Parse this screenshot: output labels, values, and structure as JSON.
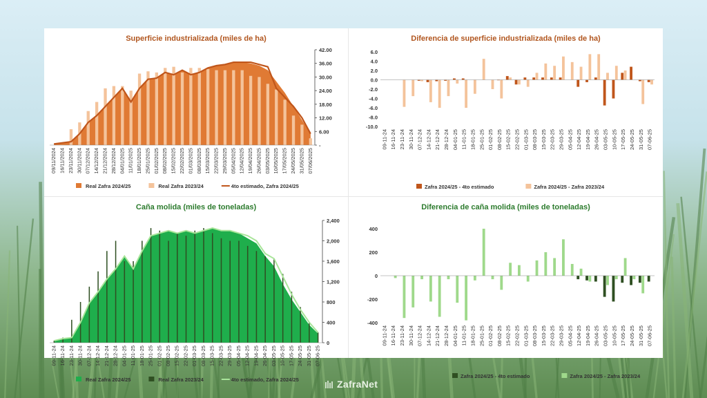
{
  "brand": {
    "name": "ZafraNet"
  },
  "colors": {
    "orange": "#e07a34",
    "orange_light": "#f4c39b",
    "orange_dark": "#c0561b",
    "orange_title": "#b1561f",
    "green": "#1fae4c",
    "green_dark": "#2f4f22",
    "green_light": "#9fd98b",
    "green_line": "#a9e59a",
    "green_title": "#2c7b2d"
  },
  "chart_data": [
    {
      "id": "superficie",
      "type": "bar",
      "title": "Superficie industrializada (miles de ha)",
      "categories": [
        "09/11/2024",
        "16/11/2024",
        "23/11/2024",
        "30/11/2024",
        "07/12/2024",
        "14/12/2024",
        "21/12/2024",
        "28/12/2024",
        "04/01/2025",
        "11/01/2025",
        "18/01/2025",
        "25/01/2025",
        "01/02/2025",
        "08/02/2025",
        "15/02/2025",
        "22/02/2025",
        "01/03/2025",
        "08/03/2025",
        "15/03/2025",
        "22/03/2025",
        "29/03/2025",
        "05/04/2025",
        "12/04/2025",
        "19/04/2025",
        "26/04/2025",
        "03/05/2025",
        "10/05/2025",
        "17/05/2025",
        "24/05/2025",
        "31/05/2025",
        "07/06/2025"
      ],
      "ytick_labels": [
        "42.00",
        "36.00",
        "30.00",
        "24.00",
        "18.00",
        "12.00",
        "6.00",
        "-"
      ],
      "ylim": [
        0,
        42
      ],
      "series": [
        {
          "name": "Real Zafra 2024/25",
          "kind": "area",
          "values": [
            0.5,
            1,
            1.5,
            5,
            10,
            13,
            17,
            21,
            25,
            19,
            25,
            29,
            29.5,
            32,
            31,
            33,
            31,
            32,
            34,
            35,
            35.5,
            36.5,
            36.5,
            36,
            35,
            33,
            28,
            23,
            17,
            11,
            5
          ]
        },
        {
          "name": "Real Zafra 2023/24",
          "kind": "bar",
          "values": [
            0,
            0,
            7,
            10,
            15,
            19,
            25,
            26,
            26,
            24,
            31.5,
            32.5,
            32,
            34,
            34.5,
            32,
            34,
            34,
            33.5,
            33,
            33,
            33,
            33,
            30.5,
            30,
            27,
            24.5,
            20,
            13,
            9,
            3
          ]
        },
        {
          "name": "4to estimado, Zafra 2024/25",
          "kind": "line",
          "values": [
            0.5,
            1,
            1.5,
            5,
            10,
            13,
            17,
            21,
            25,
            19,
            25,
            29,
            29.5,
            32,
            31,
            33,
            31,
            32,
            34,
            35,
            35.5,
            36.5,
            36.5,
            36.5,
            35.5,
            34.5,
            25,
            21,
            17,
            12,
            5
          ]
        }
      ]
    },
    {
      "id": "dif_superficie",
      "type": "bar",
      "title": "Diferencia de superficie industrializada (miles de ha)",
      "categories": [
        "09-11-24",
        "16-11-24",
        "23-11-24",
        "30-11-24",
        "07-12-24",
        "14-12-24",
        "21-12-24",
        "28-12-24",
        "04-01-25",
        "11-01-25",
        "18-01-25",
        "25-01-25",
        "01-02-25",
        "08-02-25",
        "15-02-25",
        "22-02-25",
        "01-03-25",
        "08-03-25",
        "15-03-25",
        "22-03-25",
        "29-03-25",
        "05-04-25",
        "12-04-25",
        "19-04-25",
        "26-04-25",
        "03-05-25",
        "10-05-25",
        "17-05-25",
        "24-05-25",
        "31-05-25",
        "07-06-25"
      ],
      "ytick_labels": [
        "6.0",
        "4.0",
        "2.0",
        "0.0",
        "-2.0",
        "-4.0",
        "-6.0",
        "-8.0",
        "-10.0"
      ],
      "ylim": [
        -10,
        6
      ],
      "series": [
        {
          "name": "Zafra 2024/25 - 4to estimado",
          "values": [
            0,
            0,
            0,
            0,
            -0.2,
            -0.5,
            -0.3,
            -0.2,
            0.3,
            0.3,
            0,
            0,
            0,
            -0.1,
            0.8,
            -1,
            0.5,
            0.5,
            0.5,
            0.5,
            0.5,
            0,
            -1.5,
            -0.5,
            0.5,
            -5.5,
            -4,
            1.5,
            2.8,
            -0.3,
            -0.5
          ]
        },
        {
          "name": "Zafra 2024/25 - Zafra 2023/24",
          "values": [
            0,
            0,
            -5.8,
            -3.5,
            -0.3,
            -4.8,
            -6,
            -3.5,
            -0.8,
            -6,
            -3,
            4.5,
            -2,
            -4,
            0.5,
            -1,
            -1.5,
            1.5,
            3.5,
            3,
            5,
            3.8,
            2.8,
            5.5,
            5.5,
            1.5,
            3,
            2,
            0,
            -5.2,
            -1
          ]
        }
      ]
    },
    {
      "id": "cana",
      "type": "bar",
      "title": "Caña molida (miles de toneladas)",
      "categories": [
        "09-11-24",
        "16-11-24",
        "23-11-24",
        "30-11-24",
        "07-12-24",
        "14-12-24",
        "21-12-24",
        "28-12-24",
        "04-01-25",
        "11-01-25",
        "18-01-25",
        "25-01-25",
        "01-02-25",
        "08-02-25",
        "15-02-25",
        "22-02-25",
        "01-03-25",
        "08-03-25",
        "15-03-25",
        "22-03-25",
        "29-03-25",
        "05-04-25",
        "12-04-25",
        "19-04-25",
        "26-04-25",
        "03-05-25",
        "10-05-25",
        "17-05-25",
        "24-05-25",
        "31-05-25",
        "07-06-25"
      ],
      "ytick_labels": [
        "2,400",
        "2,000",
        "1,600",
        "1,200",
        "800",
        "400",
        "0"
      ],
      "ylim": [
        0,
        2400
      ],
      "series": [
        {
          "name": "Real Zafra 2024/25",
          "kind": "area",
          "values": [
            40,
            80,
            100,
            400,
            780,
            1000,
            1250,
            1450,
            1700,
            1450,
            1800,
            2100,
            2150,
            2200,
            2150,
            2200,
            2150,
            2200,
            2250,
            2200,
            2200,
            2150,
            2050,
            1950,
            1700,
            1500,
            1150,
            850,
            600,
            350,
            180
          ]
        },
        {
          "name": "Real Zafra 2023/24",
          "kind": "bar",
          "values": [
            40,
            100,
            450,
            800,
            1100,
            1400,
            1800,
            2000,
            1600,
            1600,
            2000,
            2250,
            2200,
            2000,
            2150,
            2100,
            2200,
            2250,
            2150,
            2050,
            2000,
            2000,
            1900,
            1800,
            1700,
            1650,
            1350,
            1000,
            700,
            400,
            200
          ]
        },
        {
          "name": "4to estimado, Zafra 2024/25",
          "kind": "line",
          "values": [
            40,
            80,
            100,
            400,
            780,
            1000,
            1250,
            1450,
            1700,
            1450,
            1800,
            2100,
            2150,
            2200,
            2150,
            2200,
            2150,
            2200,
            2250,
            2200,
            2200,
            2150,
            2100,
            2000,
            1750,
            1650,
            1300,
            950,
            650,
            400,
            200
          ]
        }
      ]
    },
    {
      "id": "dif_cana",
      "type": "bar",
      "title": "Diferencia de caña molida (miles de toneladas)",
      "categories": [
        "09-11-24",
        "16-11-24",
        "23-11-24",
        "30-11-24",
        "07-12-24",
        "14-12-24",
        "21-12-24",
        "28-12-24",
        "04-01-25",
        "11-01-25",
        "18-01-25",
        "25-01-25",
        "01-02-25",
        "08-02-25",
        "15-02-25",
        "22-02-25",
        "01-03-25",
        "08-03-25",
        "15-03-25",
        "22-03-25",
        "29-03-25",
        "05-04-25",
        "12-04-25",
        "19-04-25",
        "26-04-25",
        "03-05-25",
        "10-05-25",
        "17-05-25",
        "24-05-25",
        "31-05-25",
        "07-06-25"
      ],
      "ytick_labels": [
        "400",
        "200",
        "0",
        "-200",
        "-400"
      ],
      "ylim": [
        -400,
        400
      ],
      "series": [
        {
          "name": "Zafra 2024/25 - 4to estimado",
          "values": [
            0,
            0,
            0,
            0,
            0,
            0,
            0,
            0,
            0,
            0,
            0,
            0,
            0,
            0,
            0,
            0,
            0,
            0,
            0,
            0,
            0,
            0,
            -30,
            -40,
            -50,
            -180,
            -220,
            -60,
            -80,
            -60,
            -50
          ]
        },
        {
          "name": "Zafra 2024/25 - Zafra 2023/24",
          "values": [
            0,
            -20,
            -360,
            -270,
            -30,
            -220,
            -350,
            -30,
            -230,
            -380,
            -40,
            400,
            -30,
            -120,
            110,
            90,
            -50,
            130,
            200,
            150,
            310,
            100,
            60,
            -50,
            0,
            -80,
            -30,
            150,
            -30,
            -150,
            0
          ]
        }
      ]
    }
  ]
}
